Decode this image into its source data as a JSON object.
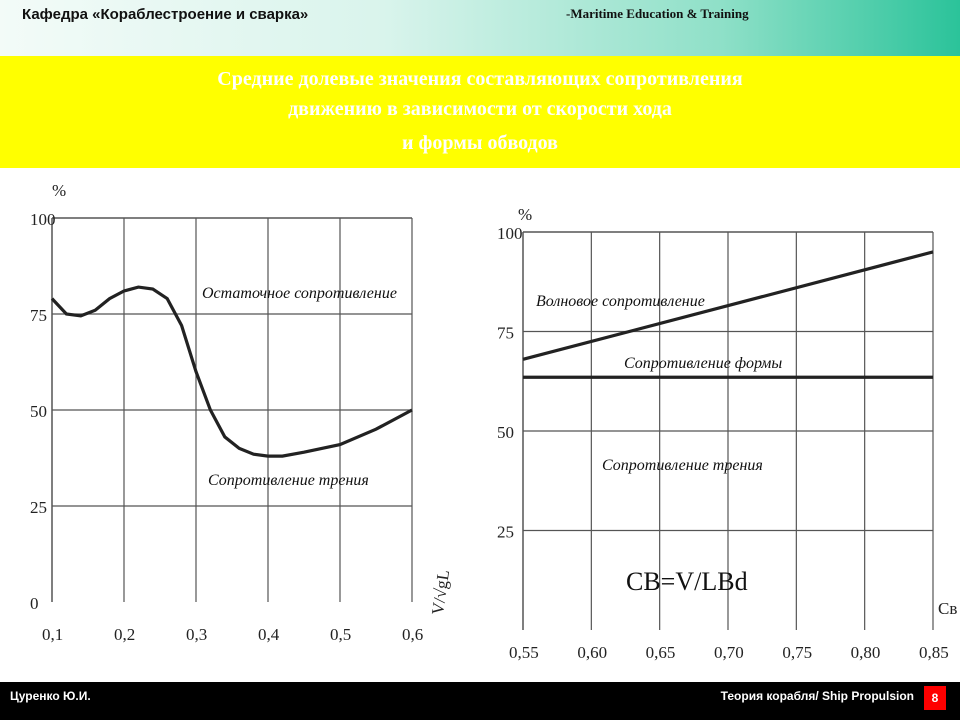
{
  "header": {
    "department": "Кафедра «Кораблестроение и сварка»",
    "organization": "-Maritime Education & Training"
  },
  "title": {
    "lines": [
      "Средние долевые значения составляющих сопротивления",
      "движению в зависимости от скорости хода",
      "и формы обводов"
    ]
  },
  "footer": {
    "author": "Цуренко Ю.И.",
    "course": "Теория корабля/ Ship Propulsion",
    "page": "8"
  },
  "colors": {
    "title_background": "#ffff00",
    "title_text": "#ffffff",
    "curve": "#222222",
    "page_badge": "#ff0000"
  },
  "chart_data": [
    {
      "type": "line",
      "title": "",
      "xlabel": "V/√gL",
      "ylabel": "%",
      "xlim": [
        0.1,
        0.6
      ],
      "ylim": [
        0,
        100
      ],
      "x_ticks": [
        "0,1",
        "0,2",
        "0,3",
        "0,4",
        "0,5",
        "0,6"
      ],
      "y_ticks": [
        "0",
        "25",
        "50",
        "75",
        "100"
      ],
      "grid": true,
      "series": [
        {
          "name": "boundary",
          "x": [
            0.1,
            0.12,
            0.14,
            0.16,
            0.18,
            0.2,
            0.22,
            0.24,
            0.26,
            0.28,
            0.3,
            0.32,
            0.34,
            0.36,
            0.38,
            0.4,
            0.42,
            0.45,
            0.5,
            0.55,
            0.6
          ],
          "y": [
            79,
            75,
            74.5,
            76,
            79,
            81,
            82,
            81.5,
            79,
            72,
            60,
            50,
            43,
            40,
            38.5,
            38,
            38,
            39,
            41,
            45,
            50
          ]
        }
      ],
      "annotations": [
        "Остаточное сопротивление",
        "Сопротивление трения"
      ]
    },
    {
      "type": "line",
      "title": "",
      "xlabel": "Cв",
      "ylabel": "%",
      "xlim": [
        0.55,
        0.85
      ],
      "ylim": [
        0,
        100
      ],
      "x_ticks": [
        "0,55",
        "0,60",
        "0,65",
        "0,70",
        "0,75",
        "0,80",
        "0,85"
      ],
      "y_ticks": [
        "25",
        "50",
        "75",
        "100"
      ],
      "grid": true,
      "series": [
        {
          "name": "upper",
          "x": [
            0.55,
            0.85
          ],
          "y": [
            68,
            95
          ]
        },
        {
          "name": "lower",
          "x": [
            0.55,
            0.85
          ],
          "y": [
            63.5,
            63.5
          ]
        }
      ],
      "annotations": [
        "Волновое сопротивление",
        "Сопротивление формы",
        "Сопротивление трения"
      ],
      "formula": "CB=V/LBd"
    }
  ]
}
